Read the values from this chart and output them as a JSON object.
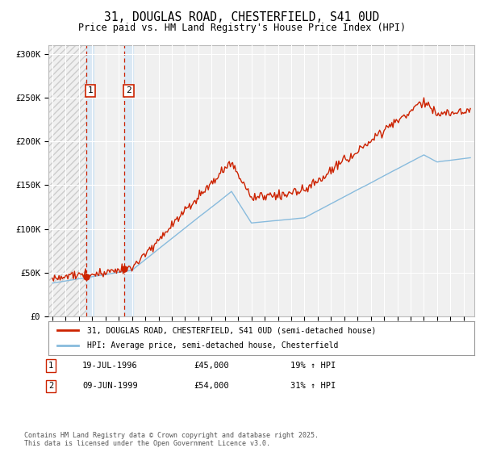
{
  "title": "31, DOUGLAS ROAD, CHESTERFIELD, S41 0UD",
  "subtitle": "Price paid vs. HM Land Registry's House Price Index (HPI)",
  "title_fontsize": 10.5,
  "subtitle_fontsize": 8.5,
  "background_color": "#ffffff",
  "plot_bg_color": "#f0f0f0",
  "grid_color": "#ffffff",
  "hatch_color": "#cccccc",
  "ylim": [
    0,
    310000
  ],
  "yticks": [
    0,
    50000,
    100000,
    150000,
    200000,
    250000,
    300000
  ],
  "ytick_labels": [
    "£0",
    "£50K",
    "£100K",
    "£150K",
    "£200K",
    "£250K",
    "£300K"
  ],
  "xlim_start": 1993.7,
  "xlim_end": 2025.8,
  "legend_line1": "31, DOUGLAS ROAD, CHESTERFIELD, S41 0UD (semi-detached house)",
  "legend_line2": "HPI: Average price, semi-detached house, Chesterfield",
  "line1_color": "#cc2200",
  "line2_color": "#88bbdd",
  "sale1_date_x": 1996.54,
  "sale1_price": 45000,
  "sale2_date_x": 1999.44,
  "sale2_price": 54000,
  "sale1_label": "1",
  "sale2_label": "2",
  "shade_start1": 1996.54,
  "shade_end1": 1997.1,
  "shade_start2": 1999.44,
  "shade_end2": 2000.1,
  "annotation1_num": "1",
  "annotation1_date": "19-JUL-1996",
  "annotation1_price": "£45,000",
  "annotation1_hpi": "19% ↑ HPI",
  "annotation2_num": "2",
  "annotation2_date": "09-JUN-1999",
  "annotation2_price": "£54,000",
  "annotation2_hpi": "31% ↑ HPI",
  "footer": "Contains HM Land Registry data © Crown copyright and database right 2025.\nThis data is licensed under the Open Government Licence v3.0."
}
